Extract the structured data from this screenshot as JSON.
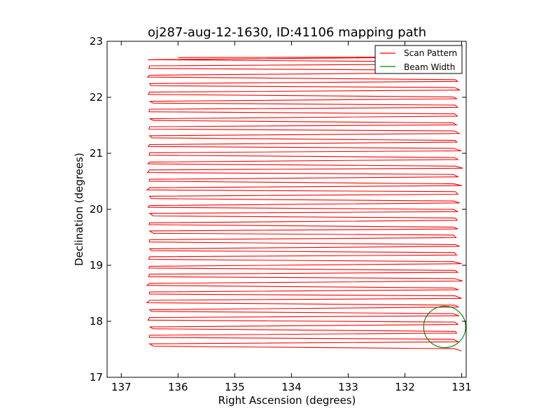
{
  "chart_data": {
    "type": "line",
    "title": "oj287-aug-12-1630, ID:41106 mapping path",
    "xlabel": "Right Ascension (degrees)",
    "ylabel": "Declination (degrees)",
    "xlim": [
      137.25,
      130.92
    ],
    "ylim": [
      17,
      23
    ],
    "x_inverted": true,
    "xticks": [
      137,
      136,
      135,
      134,
      133,
      132,
      131
    ],
    "yticks": [
      17,
      18,
      19,
      20,
      21,
      22,
      23
    ],
    "grid": false,
    "legend_position": "top-right",
    "series": [
      {
        "name": "Scan Pattern",
        "color": "#ff0000",
        "pattern": "boustrophedon",
        "ra_range": [
          136.5,
          131.05
        ],
        "first_point": [
          136.0,
          22.71
        ],
        "last_point": [
          131.0,
          17.47
        ],
        "row_spacing_deg": 0.0775
      },
      {
        "name": "Beam Width",
        "color": "#008000",
        "center": [
          131.3,
          17.9
        ],
        "radius_deg": 0.37
      }
    ]
  }
}
